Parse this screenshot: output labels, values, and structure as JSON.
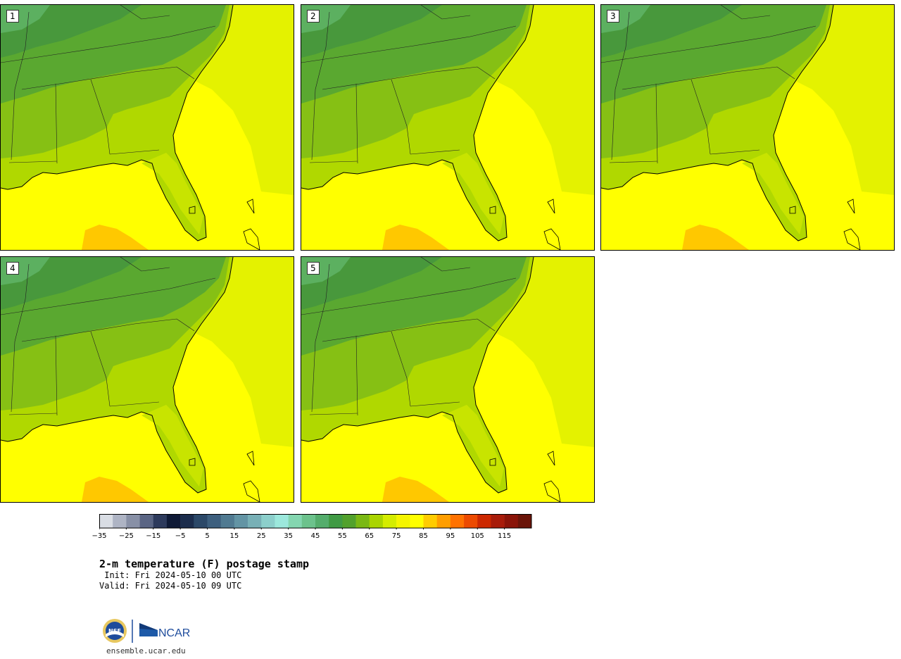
{
  "panels": [
    {
      "label": "1"
    },
    {
      "label": "2"
    },
    {
      "label": "3"
    },
    {
      "label": "4"
    },
    {
      "label": "5"
    }
  ],
  "colorbar": {
    "colors": [
      "#d9dde4",
      "#aeb4c4",
      "#8890a6",
      "#5a6584",
      "#2d3a5c",
      "#0f1a36",
      "#1b2c4c",
      "#2b4868",
      "#3d5f7e",
      "#507a91",
      "#6394a4",
      "#78b0b6",
      "#8ccfcb",
      "#9ce8dc",
      "#84d6b0",
      "#6cc28c",
      "#54ad6c",
      "#409a44",
      "#52a12c",
      "#7ab814",
      "#aad400",
      "#d4ec00",
      "#f5f500",
      "#ffff00",
      "#ffcc00",
      "#ff9e00",
      "#ff7200",
      "#ec4a00",
      "#cc2800",
      "#a81c0a",
      "#8a1408",
      "#6a1408"
    ],
    "tick_labels": [
      "−35",
      "−25",
      "−15",
      "−5",
      "5",
      "15",
      "25",
      "35",
      "45",
      "55",
      "65",
      "75",
      "85",
      "95",
      "105",
      "115"
    ]
  },
  "title": "2-m temperature (F) postage stamp",
  "init": " Init: Fri 2024-05-10 00 UTC",
  "valid": "Valid: Fri 2024-05-10 09 UTC",
  "website": "ensemble.ucar.edu",
  "logos": {
    "nsf": "NSF",
    "ncar": "NCAR"
  }
}
